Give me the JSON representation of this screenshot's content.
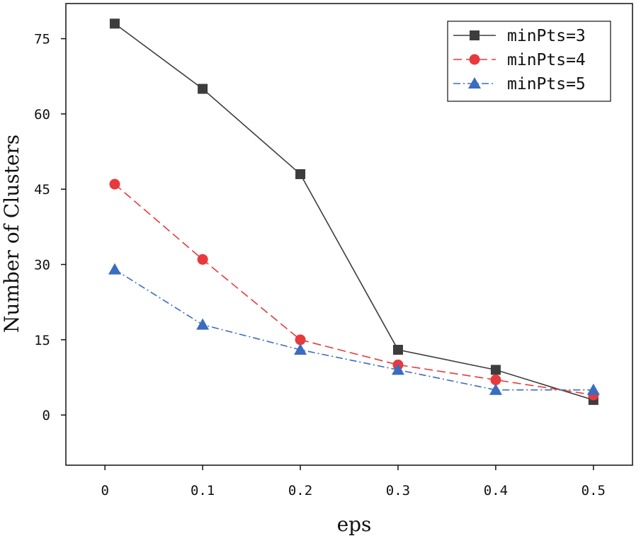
{
  "chart_data": {
    "type": "line",
    "title": "",
    "xlabel": "eps",
    "ylabel": "Number of Clusters",
    "xlim": [
      -0.04,
      0.54
    ],
    "ylim": [
      -10,
      82
    ],
    "x_ticks": [
      0,
      0.1,
      0.2,
      0.3,
      0.4,
      0.5
    ],
    "x_tick_labels": [
      "0",
      "0.1",
      "0.2",
      "0.3",
      "0.4",
      "0.5"
    ],
    "y_ticks": [
      0,
      15,
      30,
      45,
      60,
      75
    ],
    "y_tick_labels": [
      "0",
      "15",
      "30",
      "45",
      "60",
      "75"
    ],
    "grid": false,
    "legend_position": "top-right",
    "x": [
      0.01,
      0.1,
      0.2,
      0.3,
      0.4,
      0.5
    ],
    "series": [
      {
        "name": "minPts=3",
        "values": [
          78,
          65,
          48,
          13,
          9,
          3
        ],
        "color": "#3d3d3d",
        "marker": "square",
        "line_style": "solid"
      },
      {
        "name": "minPts=4",
        "values": [
          46,
          31,
          15,
          10,
          7,
          4
        ],
        "color": "#e8393c",
        "marker": "circle",
        "line_style": "dashed"
      },
      {
        "name": "minPts=5",
        "values": [
          29,
          18,
          13,
          9,
          5,
          5
        ],
        "color": "#3a6cbf",
        "marker": "triangle",
        "line_style": "dashdot"
      }
    ]
  }
}
